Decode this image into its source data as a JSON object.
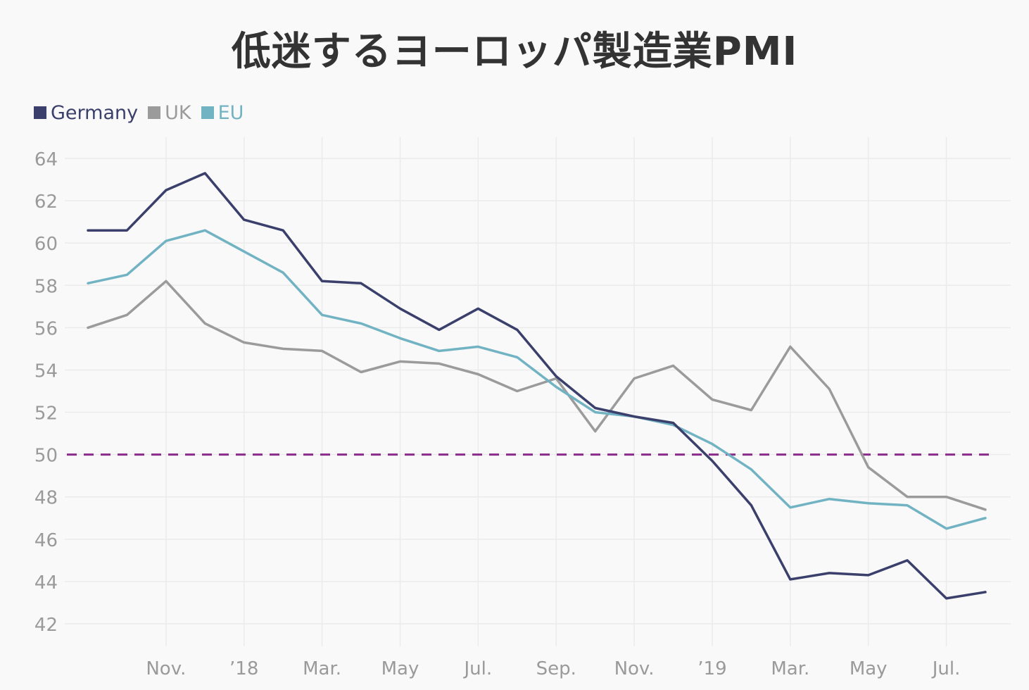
{
  "title": "低迷するヨーロッパ製造業PMI",
  "legend": [
    {
      "name": "Germany",
      "color": "#3a3f6b"
    },
    {
      "name": "UK",
      "color": "#9b9b9b"
    },
    {
      "name": "EU",
      "color": "#72b3c3"
    }
  ],
  "chart_data": {
    "type": "line",
    "title": "低迷するヨーロッパ製造業PMI",
    "xlabel": "",
    "ylabel": "",
    "ylim": [
      41.5,
      64.5
    ],
    "yticks": [
      42,
      44,
      46,
      48,
      50,
      52,
      54,
      56,
      58,
      60,
      62,
      64
    ],
    "xlim": [
      0,
      23
    ],
    "xticks": [
      {
        "x": 2,
        "label": "Nov."
      },
      {
        "x": 4,
        "label": "’18"
      },
      {
        "x": 6,
        "label": "Mar."
      },
      {
        "x": 8,
        "label": "May"
      },
      {
        "x": 10,
        "label": "Jul."
      },
      {
        "x": 12,
        "label": "Sep."
      },
      {
        "x": 14,
        "label": "Nov."
      },
      {
        "x": 16,
        "label": "’19"
      },
      {
        "x": 18,
        "label": "Mar."
      },
      {
        "x": 20,
        "label": "May"
      },
      {
        "x": 22,
        "label": "Jul."
      }
    ],
    "x": [
      0,
      1,
      2,
      3,
      4,
      5,
      6,
      7,
      8,
      9,
      10,
      11,
      12,
      13,
      14,
      15,
      16,
      17,
      18,
      19,
      20,
      21,
      22,
      23
    ],
    "series": [
      {
        "name": "Germany",
        "color": "#3a3f6b",
        "values": [
          60.6,
          60.6,
          62.5,
          63.3,
          61.1,
          60.6,
          58.2,
          58.1,
          56.9,
          55.9,
          56.9,
          55.9,
          53.7,
          52.2,
          51.8,
          51.5,
          49.7,
          47.6,
          44.1,
          44.4,
          44.3,
          45.0,
          43.2,
          43.5
        ]
      },
      {
        "name": "UK",
        "color": "#9b9b9b",
        "values": [
          56.0,
          56.6,
          58.2,
          56.2,
          55.3,
          55.0,
          54.9,
          53.9,
          54.4,
          54.3,
          53.8,
          53.0,
          53.6,
          51.1,
          53.6,
          54.2,
          52.6,
          52.1,
          55.1,
          53.1,
          49.4,
          48.0,
          48.0,
          47.4
        ]
      },
      {
        "name": "EU",
        "color": "#72b3c3",
        "values": [
          58.1,
          58.5,
          60.1,
          60.6,
          59.6,
          58.6,
          56.6,
          56.2,
          55.5,
          54.9,
          55.1,
          54.6,
          53.2,
          52.0,
          51.8,
          51.4,
          50.5,
          49.3,
          47.5,
          47.9,
          47.7,
          47.6,
          46.5,
          47.0
        ]
      }
    ],
    "reference_line": {
      "y": 50,
      "color": "#8b2b8b",
      "style": "dashed"
    },
    "grid": true,
    "legend_position": "top-left"
  }
}
